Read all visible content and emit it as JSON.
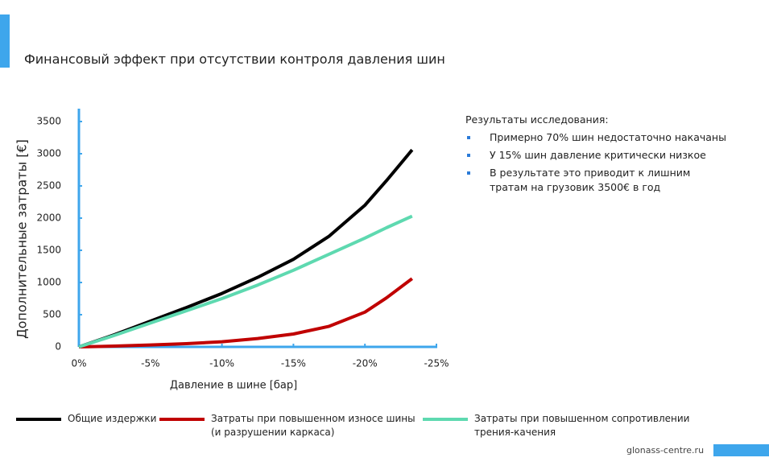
{
  "chart_data": {
    "type": "line",
    "title": "Финансовый эффект при отсутствии контроля давления  шин",
    "xlabel": "Давление в шине [бар]",
    "ylabel": "Дополнительные затраты [€]",
    "x": [
      0,
      -2.5,
      -5,
      -7.5,
      -10,
      -12.5,
      -15,
      -17.5,
      -20,
      -21.5,
      -23.3
    ],
    "series": [
      {
        "name": "Общие издержки",
        "color": "#000000",
        "values": [
          0,
          190,
          400,
          610,
          830,
          1080,
          1360,
          1720,
          2200,
          2580,
          3060
        ]
      },
      {
        "name": "Затраты при повышенном износе  шины\n(и разрушении каркаса)",
        "color": "#c00000",
        "values": [
          0,
          12,
          30,
          50,
          80,
          130,
          200,
          320,
          540,
          760,
          1060
        ]
      },
      {
        "name": "Затраты при повышенном сопротивлении\nтрения-качения",
        "color": "#5ed9b0",
        "values": [
          0,
          180,
          370,
          560,
          750,
          960,
          1190,
          1440,
          1690,
          1850,
          2030
        ]
      }
    ],
    "xlim": [
      0,
      -25
    ],
    "xticks": [
      {
        "value": 0,
        "label": "0%"
      },
      {
        "value": -5,
        "label": "-5%"
      },
      {
        "value": -10,
        "label": "-10%"
      },
      {
        "value": -15,
        "label": "-15%"
      },
      {
        "value": -20,
        "label": "-20%"
      },
      {
        "value": -25,
        "label": "-25%"
      }
    ],
    "ylim": [
      0,
      3500
    ],
    "yticks": [
      0,
      500,
      1000,
      1500,
      2000,
      2500,
      3000,
      3500
    ],
    "grid": false
  },
  "notes": {
    "title": "Результаты исследования:",
    "items": [
      "Примерно 70% шин недостаточно накачаны",
      "У 15% шин давление критически  низкое",
      "В результате это приводит к лишним тратам на грузовик 3500€ в год"
    ]
  },
  "footer": "glonass-centre.ru"
}
